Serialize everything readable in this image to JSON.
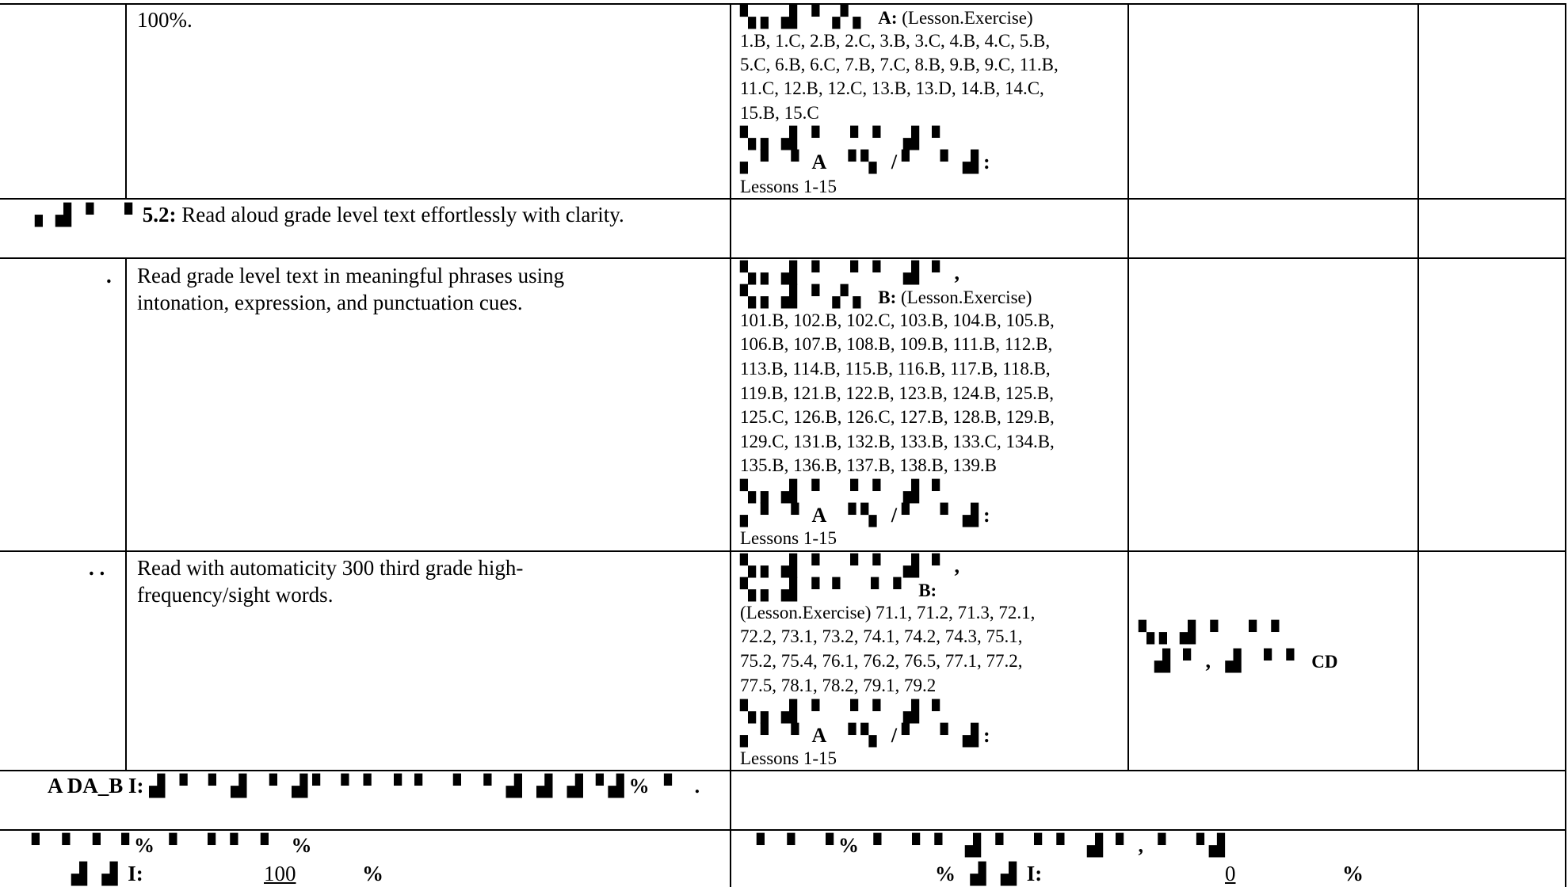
{
  "rows": [
    {
      "description": "100%.",
      "ref_garbled": "▚▖▟ ▘▞▖",
      "ref_label": "A:",
      "ref_note": "(Lesson.Exercise)",
      "ref_lines": [
        "1.B, 1.C, 2.B, 2.C, 3.B, 3.C, 4.B, 4.C, 5.B,",
        "5.C, 6.B, 6.C, 7.B, 7.C, 8.B, 9.B, 9.C, 11.B,",
        "11.C, 12.B, 12.C, 13.B, 13.D, 14.B, 14.C,",
        "15.B, 15.C"
      ],
      "garbled_a": "▚▖▟ ▘ ▝ ▘ ▟▝",
      "garbled_b": "▖▘ ▘A ▝▚ /▘ ▝ ▟:",
      "lessons": "Lessons 1-15"
    },
    {
      "marker": ".",
      "description_lines": [
        "Read grade level text in meaningful phrases using",
        "intonation, expression, and punctuation cues."
      ],
      "garbled_top": "▚▖▟ ▘ ▝ ▘ ▟▝ ,",
      "ref_garbled": "▚▖▟ ▘▞▖",
      "ref_label": "B:",
      "ref_note": "(Lesson.Exercise)",
      "ref_lines": [
        "101.B, 102.B, 102.C, 103.B, 104.B, 105.B,",
        "106.B, 107.B, 108.B, 109.B, 111.B, 112.B,",
        "113.B, 114.B, 115.B, 116.B, 117.B, 118.B,",
        "119.B, 121.B, 122.B, 123.B, 124.B, 125.B,",
        "125.C, 126.B, 126.C, 127.B, 128.B, 129.B,",
        "129.C, 131.B, 132.B, 133.B, 133.C, 134.B,",
        "135.B, 136.B, 137.B, 138.B, 139.B"
      ],
      "garbled_a": "▚▖▟ ▘ ▝ ▘ ▟▝",
      "garbled_b": "▖▘ ▘A ▝▚ /▘ ▝ ▟:",
      "lessons": "Lessons 1-15"
    },
    {
      "marker": ". .",
      "description_lines": [
        "Read with automaticity 300 third grade high-",
        "frequency/sight words."
      ],
      "garbled_top": "▚▖▟ ▘ ▝ ▘ ▟▝ ,",
      "ref_garbled": "▚▖▟ ▘▘ ▝ ▘",
      "ref_label": "B:",
      "ref_lines": [
        "(Lesson.Exercise) 71.1, 71.2, 71.3, 72.1,",
        "72.2, 73.1, 73.2, 74.1, 74.2, 74.3, 75.1,",
        "75.2, 75.4, 76.1, 76.2, 76.5, 77.1, 77.2,",
        "77.5, 78.1, 78.2, 79.1, 79.2"
      ],
      "garbled_a": "▚▖▟ ▘ ▝ ▘ ▟▝",
      "garbled_b": "▖▘ ▘A ▝▚ /▘ ▝ ▟:",
      "lessons": "Lessons 1-15",
      "col4_garbled_a": "▚▖▟ ▘ ▝ ▘",
      "col4_garbled_b": "▟▝ , ▟ ▝ ▘",
      "col4_label": "CD"
    }
  ],
  "standard": {
    "prefix_garbled": "▖▟ ▘ ▝",
    "code": "5.2:",
    "text": "Read aloud grade level text effortlessly with clarity."
  },
  "footer": {
    "label_start": "A DA_B",
    "label_i": "I:",
    "garbled": "▟ ▘▝ ▟ ▝ ▟▘▝ ▘ ▘▘ ▝ ▝ ▟ ▟ ▟▝▟% ▘ ."
  },
  "scores": {
    "left": {
      "garbled": "▘ ▘ ▘▝% ▘ ▝ ▘ ▘ % ",
      "prefix_garbled": "▟ ▟",
      "label": "I:",
      "value": "100",
      "unit": "%"
    },
    "right": {
      "garbled": "▘ ▘ ▝% ▘ ▝ ▘ ▟ ▘ ▝ ▘ ▟▝ , ▘ ▝▟",
      "prefix_garbled": "%  ▟ ▟",
      "label": "I:",
      "value": "0",
      "unit": "%"
    }
  }
}
